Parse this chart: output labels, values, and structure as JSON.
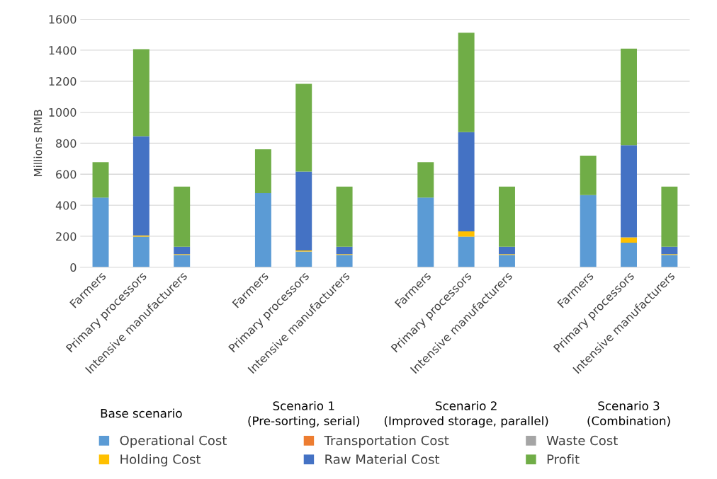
{
  "chart_data": {
    "type": "bar",
    "stacked": true,
    "ylabel": "Millions RMB",
    "categories": [
      "Farmers",
      "Primary processors",
      "Intensive manufacturers",
      null,
      "Farmers",
      "Primary processors",
      "Intensive manufacturers",
      null,
      "Farmers",
      "Primary processors",
      "Intensive manufacturers",
      null,
      "Farmers",
      "Primary processors",
      "Intensive manufacturers"
    ],
    "series": [
      {
        "name": "Operational Cost",
        "color": "#5b9bd5",
        "values": [
          450,
          197,
          80,
          null,
          478,
          102,
          80,
          null,
          450,
          197,
          80,
          null,
          466,
          159,
          80
        ]
      },
      {
        "name": "Transportation Cost",
        "color": "#ed7d31",
        "values": [
          0,
          0,
          0,
          null,
          0,
          0,
          0,
          null,
          0,
          0,
          0,
          null,
          0,
          0,
          0
        ]
      },
      {
        "name": "Waste Cost",
        "color": "#a5a5a5",
        "values": [
          0,
          0,
          0,
          null,
          0,
          0,
          0,
          null,
          0,
          0,
          0,
          null,
          0,
          0,
          0
        ]
      },
      {
        "name": "Holding Cost",
        "color": "#ffc000",
        "values": [
          0,
          8,
          5,
          null,
          0,
          7,
          5,
          null,
          0,
          35,
          5,
          null,
          0,
          34,
          5
        ]
      },
      {
        "name": "Raw Material Cost",
        "color": "#4472c4",
        "values": [
          0,
          640,
          47,
          null,
          0,
          508,
          47,
          null,
          0,
          640,
          47,
          null,
          0,
          594,
          47
        ]
      },
      {
        "name": "Profit",
        "color": "#70ad47",
        "values": [
          228,
          562,
          388,
          null,
          283,
          566,
          388,
          null,
          228,
          640,
          388,
          null,
          254,
          623,
          388
        ]
      }
    ],
    "ylim": [
      0,
      1600
    ],
    "yticks": [
      0,
      200,
      400,
      600,
      800,
      1000,
      1200,
      1400,
      1600
    ],
    "grid": "y",
    "legend": "bottom",
    "annotations": [
      "Base scenario",
      "Scenario 1\n(Pre-sorting, serial)",
      "Scenario 2\n(Improved storage, parallel)",
      "Scenario 3\n(Combination)"
    ]
  }
}
